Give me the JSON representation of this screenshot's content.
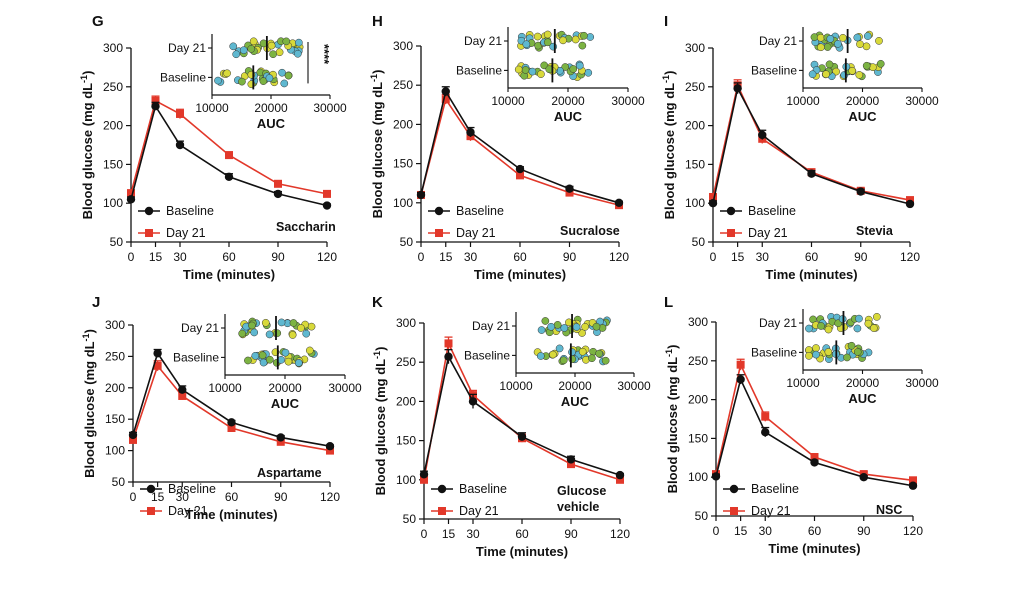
{
  "colors": {
    "baseline": "#111111",
    "day21": "#e2382a",
    "dot_yellow": "#d8d93a",
    "dot_green": "#7cb342",
    "dot_blue": "#5fb8d0"
  },
  "chart_data": [
    {
      "type": "line",
      "panel": "G",
      "label": "Saccharin",
      "xlabel": "Time (minutes)",
      "ylabel": "Blood glucose (mg dL-1)",
      "x": [
        0,
        15,
        30,
        60,
        90,
        120
      ],
      "xlim": [
        0,
        120
      ],
      "ylim": [
        50,
        300
      ],
      "yticks": [
        50,
        100,
        150,
        200,
        250,
        300
      ],
      "series": [
        {
          "name": "Baseline",
          "values": [
            105,
            225,
            175,
            134,
            112,
            97
          ],
          "err": [
            3,
            5,
            5,
            4,
            3,
            2
          ]
        },
        {
          "name": "Day 21",
          "values": [
            113,
            232,
            215,
            162,
            125,
            112
          ],
          "err": [
            3,
            6,
            6,
            4,
            3,
            3
          ]
        }
      ],
      "inset": {
        "type": "scatter",
        "xlabel": "AUC",
        "xlim": [
          10000,
          30000
        ],
        "xticks": [
          10000,
          20000,
          30000
        ],
        "rows": [
          "Day 21",
          "Baseline"
        ],
        "medians": [
          19300,
          17000
        ],
        "significance": "****"
      }
    },
    {
      "type": "line",
      "panel": "H",
      "label": "Sucralose",
      "xlabel": "Time (minutes)",
      "ylabel": "Blood glucose (mg dL-1)",
      "x": [
        0,
        15,
        30,
        60,
        90,
        120
      ],
      "xlim": [
        0,
        120
      ],
      "ylim": [
        50,
        300
      ],
      "yticks": [
        50,
        100,
        150,
        200,
        250,
        300
      ],
      "series": [
        {
          "name": "Baseline",
          "values": [
            110,
            242,
            190,
            143,
            118,
            100
          ],
          "err": [
            3,
            6,
            6,
            3,
            3,
            2
          ]
        },
        {
          "name": "Day 21",
          "values": [
            110,
            232,
            185,
            135,
            113,
            97
          ],
          "err": [
            3,
            6,
            6,
            3,
            3,
            2
          ]
        }
      ],
      "inset": {
        "type": "scatter",
        "xlabel": "AUC",
        "xlim": [
          10000,
          30000
        ],
        "xticks": [
          10000,
          20000,
          30000
        ],
        "rows": [
          "Day 21",
          "Baseline"
        ],
        "medians": [
          17800,
          17400
        ],
        "significance": ""
      }
    },
    {
      "type": "line",
      "panel": "I",
      "label": "Stevia",
      "xlabel": "Time (minutes)",
      "ylabel": "Blood glucose (mg dL-1)",
      "x": [
        0,
        15,
        30,
        60,
        90,
        120
      ],
      "xlim": [
        0,
        120
      ],
      "ylim": [
        50,
        300
      ],
      "yticks": [
        50,
        100,
        150,
        200,
        250,
        300
      ],
      "series": [
        {
          "name": "Baseline",
          "values": [
            100,
            248,
            188,
            138,
            115,
            99
          ],
          "err": [
            3,
            7,
            6,
            4,
            3,
            2
          ]
        },
        {
          "name": "Day 21",
          "values": [
            108,
            252,
            183,
            140,
            116,
            104
          ],
          "err": [
            3,
            7,
            6,
            4,
            3,
            2
          ]
        }
      ],
      "inset": {
        "type": "scatter",
        "xlabel": "AUC",
        "xlim": [
          10000,
          30000
        ],
        "xticks": [
          10000,
          20000,
          30000
        ],
        "rows": [
          "Day 21",
          "Baseline"
        ],
        "medians": [
          17500,
          17200
        ],
        "significance": ""
      }
    },
    {
      "type": "line",
      "panel": "J",
      "label": "Aspartame",
      "xlabel": "Time (minutes)",
      "ylabel": "Blood glucose (mg dL-1)",
      "x": [
        0,
        15,
        30,
        60,
        90,
        120
      ],
      "xlim": [
        0,
        120
      ],
      "ylim": [
        50,
        300
      ],
      "yticks": [
        50,
        100,
        150,
        200,
        250,
        300
      ],
      "series": [
        {
          "name": "Baseline",
          "values": [
            125,
            255,
            197,
            145,
            121,
            107
          ],
          "err": [
            4,
            6,
            6,
            3,
            3,
            2
          ]
        },
        {
          "name": "Day 21",
          "values": [
            117,
            235,
            187,
            136,
            114,
            100
          ],
          "err": [
            4,
            8,
            6,
            3,
            3,
            2
          ]
        }
      ],
      "inset": {
        "type": "scatter",
        "xlabel": "AUC",
        "xlim": [
          10000,
          30000
        ],
        "xticks": [
          10000,
          20000,
          30000
        ],
        "rows": [
          "Day 21",
          "Baseline"
        ],
        "medians": [
          18500,
          18800
        ],
        "significance": ""
      }
    },
    {
      "type": "line",
      "panel": "K",
      "label": "Glucose vehicle",
      "xlabel": "Time (minutes)",
      "ylabel": "Blood glucose (mg dL-1)",
      "x": [
        0,
        15,
        30,
        60,
        90,
        120
      ],
      "xlim": [
        0,
        120
      ],
      "ylim": [
        50,
        300
      ],
      "yticks": [
        50,
        100,
        150,
        200,
        250,
        300
      ],
      "series": [
        {
          "name": "Baseline",
          "values": [
            107,
            257,
            200,
            155,
            126,
            106
          ],
          "err": [
            4,
            9,
            9,
            5,
            4,
            2
          ]
        },
        {
          "name": "Day 21",
          "values": [
            100,
            274,
            208,
            153,
            120,
            100
          ],
          "err": [
            4,
            8,
            6,
            5,
            4,
            2
          ]
        }
      ],
      "inset": {
        "type": "scatter",
        "xlabel": "AUC",
        "xlim": [
          10000,
          30000
        ],
        "xticks": [
          10000,
          20000,
          30000
        ],
        "rows": [
          "Day 21",
          "Baseline"
        ],
        "medians": [
          19500,
          19300
        ],
        "significance": ""
      }
    },
    {
      "type": "line",
      "panel": "L",
      "label": "NSC",
      "xlabel": "Time (minutes)",
      "ylabel": "Blood glucose (mg dL-1)",
      "x": [
        0,
        15,
        30,
        60,
        90,
        120
      ],
      "xlim": [
        0,
        120
      ],
      "ylim": [
        50,
        300
      ],
      "yticks": [
        50,
        100,
        150,
        200,
        250,
        300
      ],
      "series": [
        {
          "name": "Baseline",
          "values": [
            101,
            226,
            158,
            119,
            100,
            89
          ],
          "err": [
            3,
            6,
            6,
            3,
            2,
            2
          ]
        },
        {
          "name": "Day 21",
          "values": [
            104,
            245,
            178,
            126,
            104,
            96
          ],
          "err": [
            3,
            7,
            6,
            4,
            3,
            2
          ]
        }
      ],
      "inset": {
        "type": "scatter",
        "xlabel": "AUC",
        "xlim": [
          10000,
          30000
        ],
        "xticks": [
          10000,
          20000,
          30000
        ],
        "rows": [
          "Day 21",
          "Baseline"
        ],
        "medians": [
          16800,
          15600
        ],
        "significance": ""
      }
    }
  ]
}
